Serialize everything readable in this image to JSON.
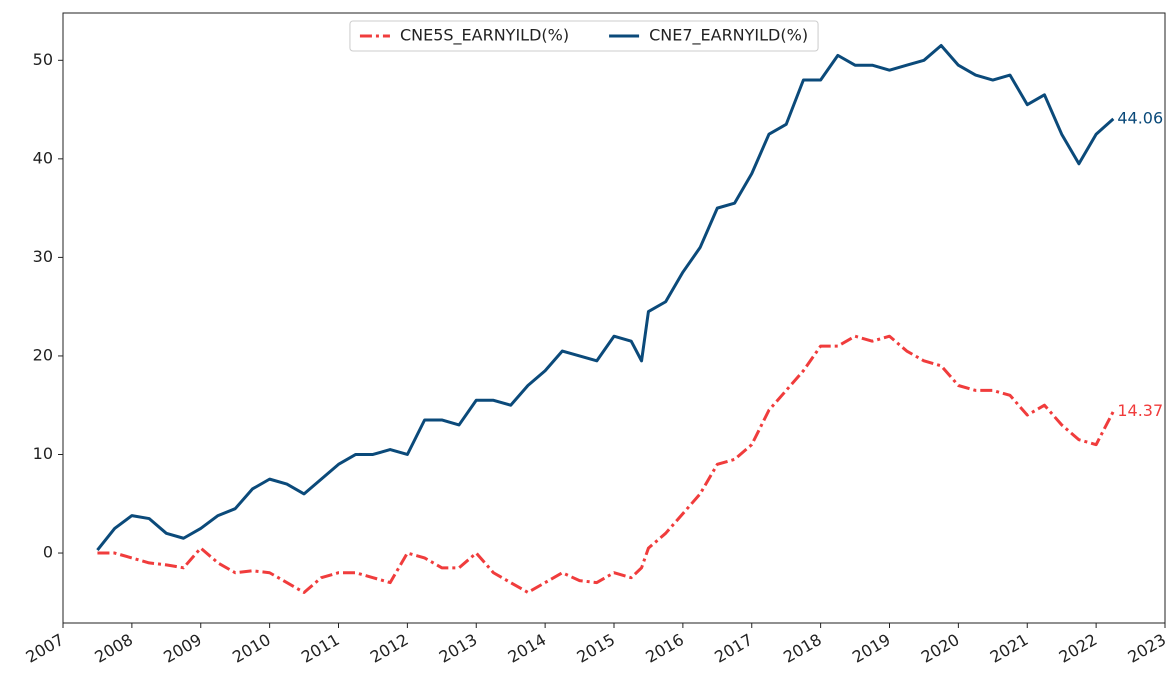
{
  "chart_data": {
    "type": "line",
    "x": [
      2007.5,
      2007.75,
      2008.0,
      2008.25,
      2008.5,
      2008.75,
      2009.0,
      2009.25,
      2009.5,
      2009.75,
      2010.0,
      2010.25,
      2010.5,
      2010.75,
      2011.0,
      2011.25,
      2011.5,
      2011.75,
      2012.0,
      2012.25,
      2012.5,
      2012.75,
      2013.0,
      2013.25,
      2013.5,
      2013.75,
      2014.0,
      2014.25,
      2014.5,
      2014.75,
      2015.0,
      2015.25,
      2015.4,
      2015.5,
      2015.75,
      2016.0,
      2016.25,
      2016.5,
      2016.75,
      2017.0,
      2017.25,
      2017.5,
      2017.75,
      2018.0,
      2018.25,
      2018.5,
      2018.75,
      2019.0,
      2019.25,
      2019.5,
      2019.75,
      2020.0,
      2020.25,
      2020.5,
      2020.75,
      2021.0,
      2021.25,
      2021.5,
      2021.75,
      2022.0,
      2022.25
    ],
    "series": [
      {
        "name": "CNE5S_EARNYILD(%)",
        "color": "#f03c3c",
        "linestyle": "dashdot",
        "end_label": "14.37",
        "values": [
          0,
          0,
          -0.5,
          -1.0,
          -1.2,
          -1.5,
          0.5,
          -1.0,
          -2.0,
          -1.8,
          -2.0,
          -3.0,
          -4.0,
          -2.5,
          -2.0,
          -2.0,
          -2.5,
          -3.0,
          0.0,
          -0.5,
          -1.5,
          -1.5,
          0.0,
          -2.0,
          -3.0,
          -4.0,
          -3.0,
          -2.0,
          -2.8,
          -3.0,
          -2.0,
          -2.5,
          -1.5,
          0.5,
          2.0,
          4.0,
          6.0,
          9.0,
          9.5,
          11.0,
          14.5,
          16.5,
          18.5,
          21.0,
          21.0,
          22.0,
          21.5,
          22.0,
          20.5,
          19.5,
          19.0,
          17.0,
          16.5,
          16.5,
          16.0,
          14.0,
          15.0,
          13.0,
          11.5,
          11.0,
          14.37
        ]
      },
      {
        "name": "CNE7_EARNYILD(%)",
        "color": "#0b4a7a",
        "linestyle": "solid",
        "end_label": "44.06",
        "values": [
          0.3,
          2.5,
          3.8,
          3.5,
          2.0,
          1.5,
          2.5,
          3.8,
          4.5,
          6.5,
          7.5,
          7.0,
          6.0,
          7.5,
          9.0,
          10.0,
          10.0,
          10.5,
          10.0,
          13.5,
          13.5,
          13.0,
          15.5,
          15.5,
          15.0,
          17.0,
          18.5,
          20.5,
          20.0,
          19.5,
          22.0,
          21.5,
          19.5,
          24.5,
          25.5,
          28.5,
          31.0,
          35.0,
          35.5,
          38.5,
          42.5,
          43.5,
          48.0,
          48.0,
          50.5,
          49.5,
          49.5,
          49.0,
          49.5,
          50.0,
          51.5,
          49.5,
          48.5,
          48.0,
          48.5,
          45.5,
          46.5,
          42.5,
          39.5,
          42.5,
          44.06
        ]
      }
    ],
    "xlim": [
      2007,
      2023
    ],
    "xticks": [
      2007,
      2008,
      2009,
      2010,
      2011,
      2012,
      2013,
      2014,
      2015,
      2016,
      2017,
      2018,
      2019,
      2020,
      2021,
      2022,
      2023
    ],
    "ylim": [
      -7.1,
      54.8
    ],
    "yticks": [
      0,
      10,
      20,
      30,
      40,
      50
    ],
    "legend": "upper center",
    "grid": false
  }
}
